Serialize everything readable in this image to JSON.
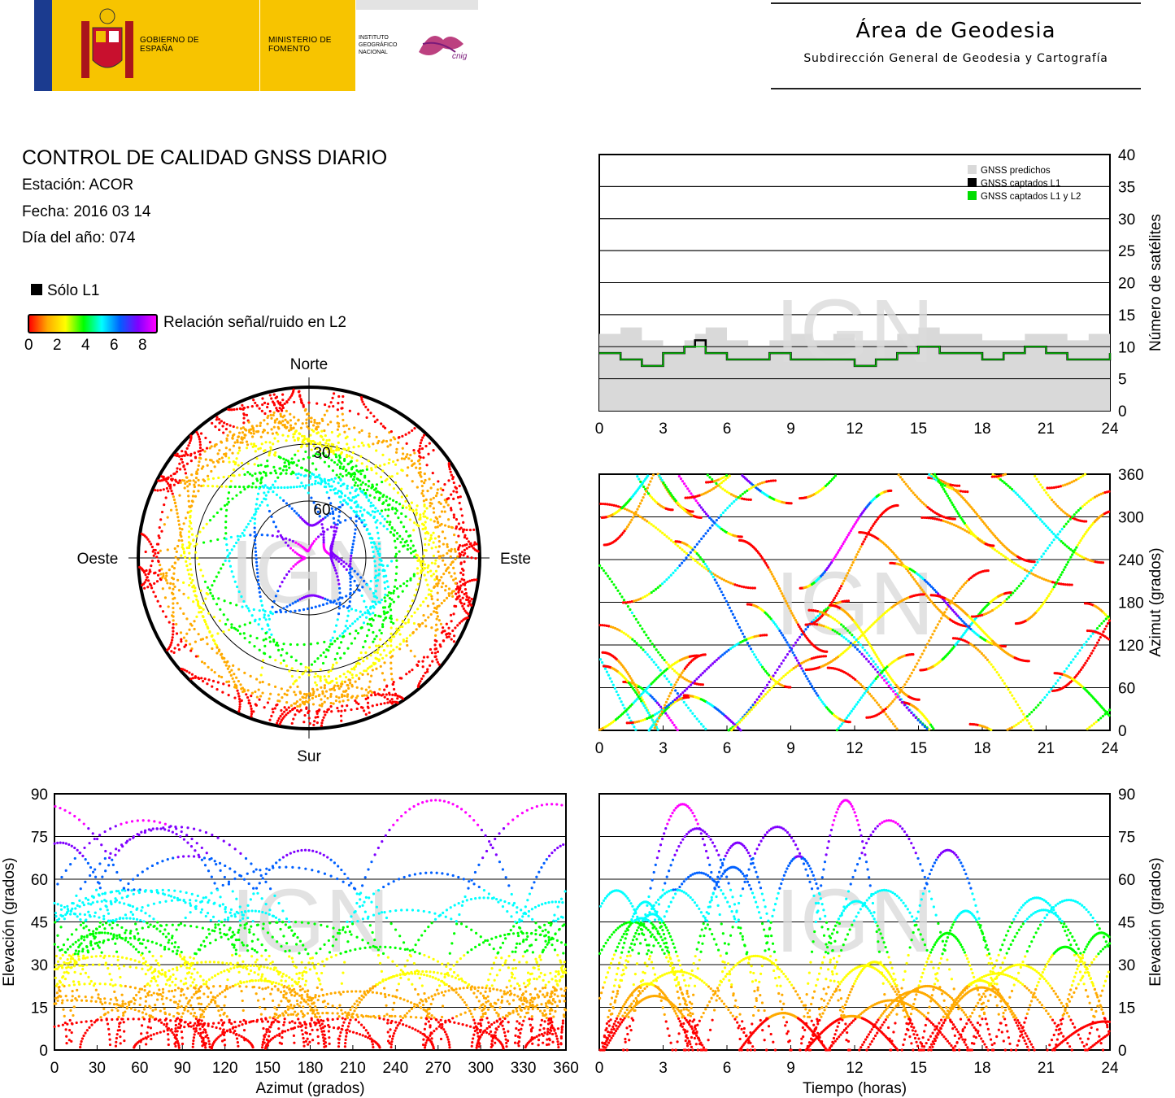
{
  "header": {
    "gobierno": "GOBIERNO DE ESPAÑA",
    "ministerio": "MINISTERIO DE FOMENTO",
    "instituto": "INSTITUTO GEOGRÁFICO NACIONAL",
    "cnig": "cnig",
    "area": "Área de Geodesia",
    "subdireccion": "Subdirección General de Geodesia y Cartografía"
  },
  "info": {
    "title": "CONTROL DE CALIDAD GNSS DIARIO",
    "station": "Estación: ACOR",
    "date": "Fecha: 2016 03 14",
    "doy": "Día del año: 074"
  },
  "legend": {
    "solo_l1": "Sólo L1",
    "snr_label": "Relación señal/ruido en L2",
    "snr_ticks": [
      "0",
      "2",
      "4",
      "6",
      "8"
    ]
  },
  "watermark": "IGN",
  "colors": {
    "predicted": "#d9d9d9",
    "l1": "#000000",
    "l1l2": "#00dd00",
    "snr_scale": [
      "#ff0000",
      "#ffaa00",
      "#ffff00",
      "#00ff00",
      "#00ffff",
      "#0060ff",
      "#8000ff",
      "#ff00ff"
    ]
  },
  "chart_data": [
    {
      "id": "num-sats",
      "type": "line",
      "xlabel": "",
      "ylabel": "Número de satélites",
      "xlim": [
        0,
        24
      ],
      "ylim": [
        0,
        40
      ],
      "xticks": [
        "0",
        "3",
        "6",
        "9",
        "12",
        "15",
        "18",
        "21",
        "24"
      ],
      "yticks": [
        "0",
        "5",
        "10",
        "15",
        "20",
        "25",
        "30",
        "35",
        "40"
      ],
      "legend": [
        "GNSS predichos",
        "GNSS captados L1",
        "GNSS captados L1 y L2"
      ],
      "legend_position": "top-right",
      "series": [
        {
          "name": "GNSS predichos",
          "x": [
            0,
            1,
            2,
            3,
            4,
            4.5,
            5,
            6,
            7,
            8,
            9,
            10,
            11,
            12,
            13,
            14,
            15,
            16,
            17,
            18,
            19,
            20,
            21,
            22,
            23,
            24
          ],
          "values": [
            12,
            13,
            11,
            10,
            11,
            12,
            13,
            11,
            10,
            11,
            12,
            11,
            12,
            11,
            11,
            12,
            13,
            12,
            12,
            11,
            11,
            12,
            12,
            11,
            12,
            12
          ]
        },
        {
          "name": "GNSS captados L1",
          "x": [
            0,
            1,
            2,
            3,
            4,
            4.5,
            5,
            6,
            7,
            8,
            9,
            10,
            11,
            12,
            13,
            14,
            15,
            16,
            17,
            18,
            19,
            20,
            21,
            22,
            23,
            24
          ],
          "values": [
            9,
            8,
            7,
            9,
            10,
            11,
            9,
            8,
            8,
            9,
            8,
            8,
            8,
            7,
            8,
            9,
            10,
            9,
            9,
            8,
            9,
            10,
            9,
            8,
            8,
            9
          ]
        },
        {
          "name": "GNSS captados L1 y L2",
          "x": [
            0,
            1,
            2,
            3,
            4,
            4.5,
            5,
            6,
            7,
            8,
            9,
            10,
            11,
            12,
            13,
            14,
            15,
            16,
            17,
            18,
            19,
            20,
            21,
            22,
            23,
            24
          ],
          "values": [
            9,
            8,
            7,
            9,
            10,
            10,
            9,
            8,
            8,
            9,
            8,
            8,
            8,
            7,
            8,
            9,
            10,
            9,
            9,
            8,
            9,
            10,
            9,
            8,
            8,
            9
          ]
        }
      ]
    },
    {
      "id": "azimuth-time",
      "type": "scatter",
      "ylabel": "Azimut (grados)",
      "xlim": [
        0,
        24
      ],
      "ylim": [
        0,
        360
      ],
      "xticks": [
        "0",
        "3",
        "6",
        "9",
        "12",
        "15",
        "18",
        "21",
        "24"
      ],
      "yticks": [
        "0",
        "60",
        "120",
        "180",
        "240",
        "300",
        "360"
      ]
    },
    {
      "id": "skyplot",
      "type": "scatter",
      "directions": {
        "north": "Norte",
        "south": "Sur",
        "east": "Este",
        "west": "Oeste"
      },
      "rings": [
        "30",
        "60"
      ]
    },
    {
      "id": "elev-azimuth",
      "type": "scatter",
      "xlabel": "Azimut (grados)",
      "ylabel": "Elevación (grados)",
      "xlim": [
        0,
        360
      ],
      "ylim": [
        0,
        90
      ],
      "xticks": [
        "0",
        "30",
        "60",
        "90",
        "120",
        "150",
        "180",
        "210",
        "240",
        "270",
        "300",
        "330",
        "360"
      ],
      "yticks": [
        "0",
        "15",
        "30",
        "45",
        "60",
        "75",
        "90"
      ]
    },
    {
      "id": "elev-time",
      "type": "scatter",
      "xlabel": "Tiempo (horas)",
      "ylabel": "Elevación (grados)",
      "xlim": [
        0,
        24
      ],
      "ylim": [
        0,
        90
      ],
      "xticks": [
        "0",
        "3",
        "6",
        "9",
        "12",
        "15",
        "18",
        "21",
        "24"
      ],
      "yticks": [
        "0",
        "15",
        "30",
        "45",
        "60",
        "75",
        "90"
      ]
    }
  ]
}
